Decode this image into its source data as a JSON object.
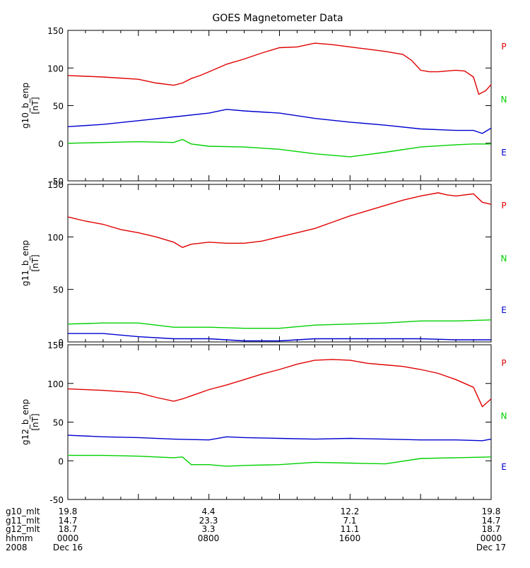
{
  "title": "GOES Magnetometer Data",
  "chart_data": [
    {
      "type": "line",
      "ylabel": "g10_b_enp",
      "unit": "[nT]",
      "ylim": [
        -50,
        150
      ],
      "yticks": [
        -50,
        0,
        50,
        100,
        150
      ],
      "xlim": [
        0,
        24
      ],
      "series": [
        {
          "name": "P",
          "color": "#e00000",
          "x": [
            0,
            2,
            4,
            5,
            6,
            6.5,
            7,
            7.5,
            8,
            9,
            10,
            11,
            12,
            13,
            14,
            15,
            16,
            17,
            18,
            19,
            19.5,
            20,
            20.5,
            21,
            22,
            22.5,
            23,
            23.3,
            23.7,
            24
          ],
          "y": [
            90,
            88,
            85,
            80,
            77,
            80,
            86,
            90,
            95,
            105,
            112,
            120,
            127,
            128,
            133,
            131,
            128,
            125,
            122,
            118,
            110,
            97,
            95,
            95,
            97,
            96,
            88,
            65,
            70,
            78
          ]
        },
        {
          "name": "N",
          "color": "#00d000",
          "x": [
            0,
            2,
            4,
            6,
            6.5,
            7,
            8,
            10,
            12,
            14,
            16,
            18,
            20,
            22,
            23,
            24
          ],
          "y": [
            0,
            1,
            2,
            1,
            5,
            -1,
            -4,
            -5,
            -8,
            -14,
            -18,
            -12,
            -5,
            -2,
            -1,
            -1
          ]
        },
        {
          "name": "E",
          "color": "#0000d0",
          "x": [
            0,
            2,
            4,
            6,
            8,
            9,
            10,
            12,
            14,
            16,
            18,
            20,
            22,
            23,
            23.5,
            24
          ],
          "y": [
            22,
            25,
            30,
            35,
            40,
            45,
            43,
            40,
            33,
            28,
            24,
            19,
            17,
            17,
            13,
            20
          ]
        }
      ]
    },
    {
      "type": "line",
      "ylabel": "g11_b_enp",
      "unit": "[nT]",
      "ylim": [
        0,
        150
      ],
      "yticks": [
        0,
        50,
        100,
        150
      ],
      "xlim": [
        0,
        24
      ],
      "series": [
        {
          "name": "P",
          "color": "#e00000",
          "x": [
            0,
            1,
            2,
            3,
            4,
            5,
            6,
            6.5,
            7,
            8,
            9,
            10,
            11,
            12,
            13,
            14,
            15,
            16,
            17,
            18,
            19,
            20,
            21,
            21.5,
            22,
            23,
            23.5,
            24
          ],
          "y": [
            119,
            115,
            112,
            107,
            104,
            100,
            95,
            90,
            93,
            95,
            94,
            94,
            96,
            100,
            104,
            108,
            114,
            120,
            125,
            130,
            135,
            139,
            142,
            140,
            139,
            141,
            133,
            131
          ]
        },
        {
          "name": "N",
          "color": "#00d000",
          "x": [
            0,
            2,
            4,
            6,
            8,
            10,
            12,
            14,
            16,
            18,
            20,
            22,
            24
          ],
          "y": [
            17,
            18,
            18,
            14,
            14,
            13,
            13,
            16,
            17,
            18,
            20,
            20,
            21
          ]
        },
        {
          "name": "E",
          "color": "#0000d0",
          "x": [
            0,
            2,
            4,
            6,
            8,
            10,
            12,
            14,
            16,
            18,
            20,
            22,
            24
          ],
          "y": [
            8,
            8,
            5,
            3,
            3,
            1,
            1,
            3,
            3,
            3,
            3,
            2,
            2
          ]
        }
      ]
    },
    {
      "type": "line",
      "ylabel": "g12_b_enp",
      "unit": "[nT]",
      "ylim": [
        -50,
        150
      ],
      "yticks": [
        -50,
        0,
        50,
        100,
        150
      ],
      "xlim": [
        0,
        24
      ],
      "series": [
        {
          "name": "P",
          "color": "#e00000",
          "x": [
            0,
            2,
            4,
            5,
            6,
            6.5,
            7,
            8,
            9,
            10,
            11,
            12,
            13,
            14,
            15,
            16,
            17,
            18,
            19,
            20,
            21,
            22,
            23,
            23.5,
            24
          ],
          "y": [
            93,
            91,
            88,
            82,
            77,
            80,
            84,
            92,
            98,
            105,
            112,
            118,
            125,
            130,
            131,
            130,
            126,
            124,
            122,
            118,
            113,
            105,
            95,
            70,
            80
          ]
        },
        {
          "name": "N",
          "color": "#00d000",
          "x": [
            0,
            2,
            4,
            6,
            6.5,
            7,
            8,
            9,
            10,
            12,
            14,
            16,
            18,
            20,
            22,
            24
          ],
          "y": [
            7,
            7,
            6,
            4,
            5,
            -5,
            -5,
            -7,
            -6,
            -5,
            -2,
            -3,
            -4,
            3,
            4,
            5
          ]
        },
        {
          "name": "E",
          "color": "#0000d0",
          "x": [
            0,
            2,
            4,
            6,
            8,
            9,
            10,
            12,
            14,
            16,
            18,
            20,
            22,
            23.5,
            24
          ],
          "y": [
            33,
            31,
            30,
            28,
            27,
            31,
            30,
            29,
            28,
            29,
            28,
            27,
            27,
            26,
            28
          ]
        }
      ]
    }
  ],
  "axis_rows": [
    {
      "label": "g10_mlt",
      "values": [
        "19.8",
        "4.4",
        "12.2",
        "19.8"
      ]
    },
    {
      "label": "g11_mlt",
      "values": [
        "14.7",
        "23.3",
        "7.1",
        "14.7"
      ]
    },
    {
      "label": "g12_mlt",
      "values": [
        "18.7",
        "3.3",
        "11.1",
        "18.7"
      ]
    },
    {
      "label": "hhmm",
      "values": [
        "0000",
        "0800",
        "1600",
        "0000"
      ]
    },
    {
      "label": "2008",
      "values": [
        "Dec 16",
        "",
        "",
        "Dec 17"
      ]
    }
  ]
}
